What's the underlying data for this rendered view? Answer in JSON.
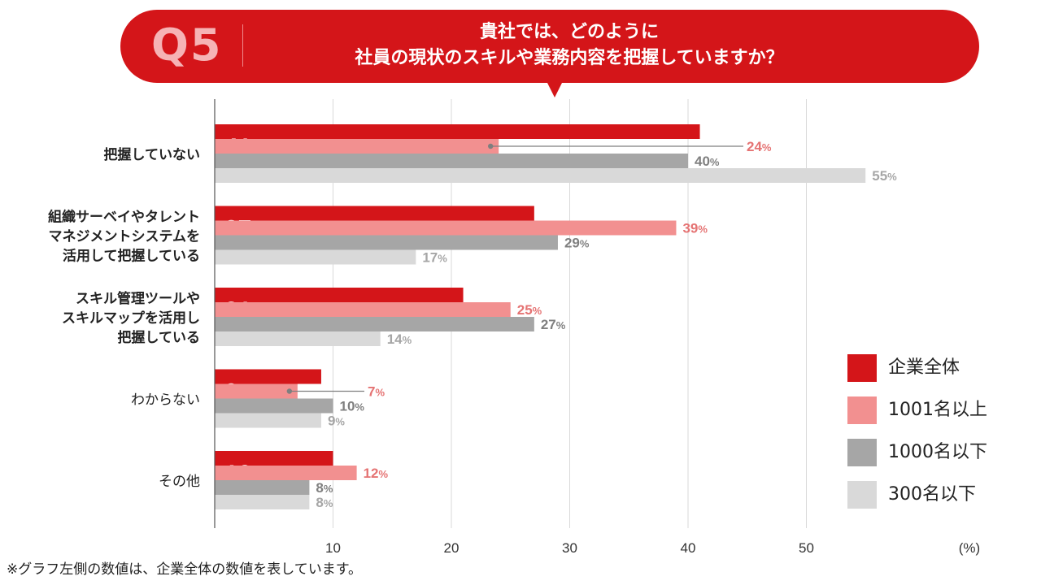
{
  "header": {
    "q_label": "Q5",
    "question_line1": "貴社では、どのように",
    "question_line2": "社員の現状のスキルや業務内容を把握していますか？",
    "color": "#d41519"
  },
  "chart_data": {
    "type": "bar",
    "orientation": "horizontal",
    "categories": [
      [
        "把握していない"
      ],
      [
        "組織サーベイやタレント",
        "マネジメントシステムを",
        "活用して把握している"
      ],
      [
        "スキル管理ツールや",
        "スキルマップを活用し",
        "把握している"
      ],
      [
        "わからない"
      ],
      [
        "その他"
      ]
    ],
    "category_bold": [
      true,
      true,
      true,
      false,
      false
    ],
    "series": [
      {
        "name": "企業全体",
        "values": [
          41,
          27,
          21,
          9,
          10
        ],
        "color": "#d41519"
      },
      {
        "name": "1001名以上",
        "values": [
          24,
          39,
          25,
          7,
          12
        ],
        "color": "#f29090"
      },
      {
        "name": "1000名以下",
        "values": [
          40,
          29,
          27,
          10,
          8
        ],
        "color": "#a6a6a6"
      },
      {
        "name": "300名以下",
        "values": [
          55,
          17,
          14,
          9,
          8
        ],
        "color": "#d9d9d9"
      }
    ],
    "label_colors": [
      "#d41519",
      "#e57373",
      "#7f7f7f",
      "#a6a6a6"
    ],
    "percent_sign": "%",
    "x_ticks": [
      10,
      20,
      30,
      40,
      50
    ],
    "xlim": [
      0,
      57
    ],
    "x_unit": "(%)",
    "grid": true,
    "legend_position": "right"
  },
  "footnote": "※グラフ左側の数値は、企業全体の数値を表しています。"
}
